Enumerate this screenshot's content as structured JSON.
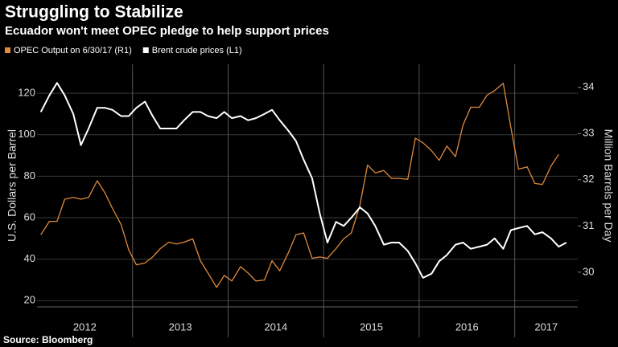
{
  "chart_data": {
    "type": "line",
    "title": "Struggling to Stabilize",
    "subtitle": "Ecuador won't meet OPEC pledge to help support prices",
    "ylabel": "U.S. Dollars per Barrel",
    "y2label": "Million Barrels per Day",
    "source": "Source: Bloomberg",
    "x": [
      2012.04,
      2012.13,
      2012.21,
      2012.29,
      2012.38,
      2012.46,
      2012.54,
      2012.63,
      2012.71,
      2012.79,
      2012.88,
      2012.96,
      2013.04,
      2013.13,
      2013.21,
      2013.29,
      2013.38,
      2013.46,
      2013.54,
      2013.63,
      2013.71,
      2013.79,
      2013.88,
      2013.96,
      2014.04,
      2014.13,
      2014.21,
      2014.29,
      2014.38,
      2014.46,
      2014.54,
      2014.63,
      2014.71,
      2014.79,
      2014.88,
      2014.96,
      2015.04,
      2015.13,
      2015.21,
      2015.29,
      2015.38,
      2015.46,
      2015.54,
      2015.63,
      2015.71,
      2015.79,
      2015.88,
      2015.96,
      2016.04,
      2016.13,
      2016.21,
      2016.29,
      2016.38,
      2016.46,
      2016.54,
      2016.63,
      2016.71,
      2016.79,
      2016.88,
      2016.96,
      2017.04,
      2017.13,
      2017.21,
      2017.29,
      2017.38,
      2017.46,
      2017.54
    ],
    "series": [
      {
        "name": "OPEC Output on 6/30/17 (R1)",
        "color": "#e08a3c",
        "axis": "y2",
        "values": [
          30.81,
          31.1,
          31.1,
          31.58,
          31.62,
          31.58,
          31.62,
          31.98,
          31.72,
          31.38,
          31.03,
          30.48,
          30.16,
          30.2,
          30.33,
          30.51,
          30.65,
          30.61,
          30.65,
          30.72,
          30.25,
          29.98,
          29.67,
          29.93,
          29.81,
          30.12,
          29.98,
          29.81,
          29.83,
          30.25,
          30.03,
          30.42,
          30.81,
          30.85,
          30.3,
          30.33,
          30.3,
          30.51,
          30.72,
          30.85,
          31.45,
          32.32,
          32.15,
          32.2,
          32.03,
          32.03,
          32.01,
          32.9,
          32.8,
          32.63,
          32.42,
          32.73,
          32.5,
          33.19,
          33.57,
          33.57,
          33.83,
          33.93,
          34.09,
          33.13,
          32.23,
          32.28,
          31.92,
          31.9,
          32.3,
          32.55,
          null
        ]
      },
      {
        "name": "Brent crude prices (L1)",
        "color": "#ffffff",
        "axis": "y",
        "values": [
          111,
          119,
          125,
          119,
          110,
          95,
          103,
          113,
          113,
          112,
          109,
          109,
          113,
          116,
          109,
          103,
          103,
          103,
          107,
          111,
          111,
          109,
          108,
          111,
          108,
          109,
          107,
          108,
          110,
          112,
          107,
          102,
          97,
          88,
          79,
          62,
          48,
          58,
          56,
          60,
          65,
          62,
          56,
          47,
          48,
          48,
          44,
          38,
          31,
          33,
          39,
          42,
          47,
          48,
          45,
          46,
          47,
          50,
          45,
          54,
          55,
          56,
          52,
          53,
          50,
          46,
          48
        ]
      }
    ],
    "xlim": [
      2012.0,
      2017.66
    ],
    "xticks": [
      {
        "value": 2012.5,
        "label": "2012"
      },
      {
        "value": 2013.5,
        "label": "2013"
      },
      {
        "value": 2014.5,
        "label": "2014"
      },
      {
        "value": 2015.5,
        "label": "2015"
      },
      {
        "value": 2016.5,
        "label": "2016"
      },
      {
        "value": 2017.33,
        "label": "2017"
      }
    ],
    "ylim": [
      17,
      134
    ],
    "yticks": [
      20,
      40,
      60,
      80,
      100,
      120
    ],
    "y2lim": [
      29.25,
      34.5
    ],
    "y2ticks": [
      30,
      31,
      32,
      33,
      34
    ],
    "grid": true
  }
}
